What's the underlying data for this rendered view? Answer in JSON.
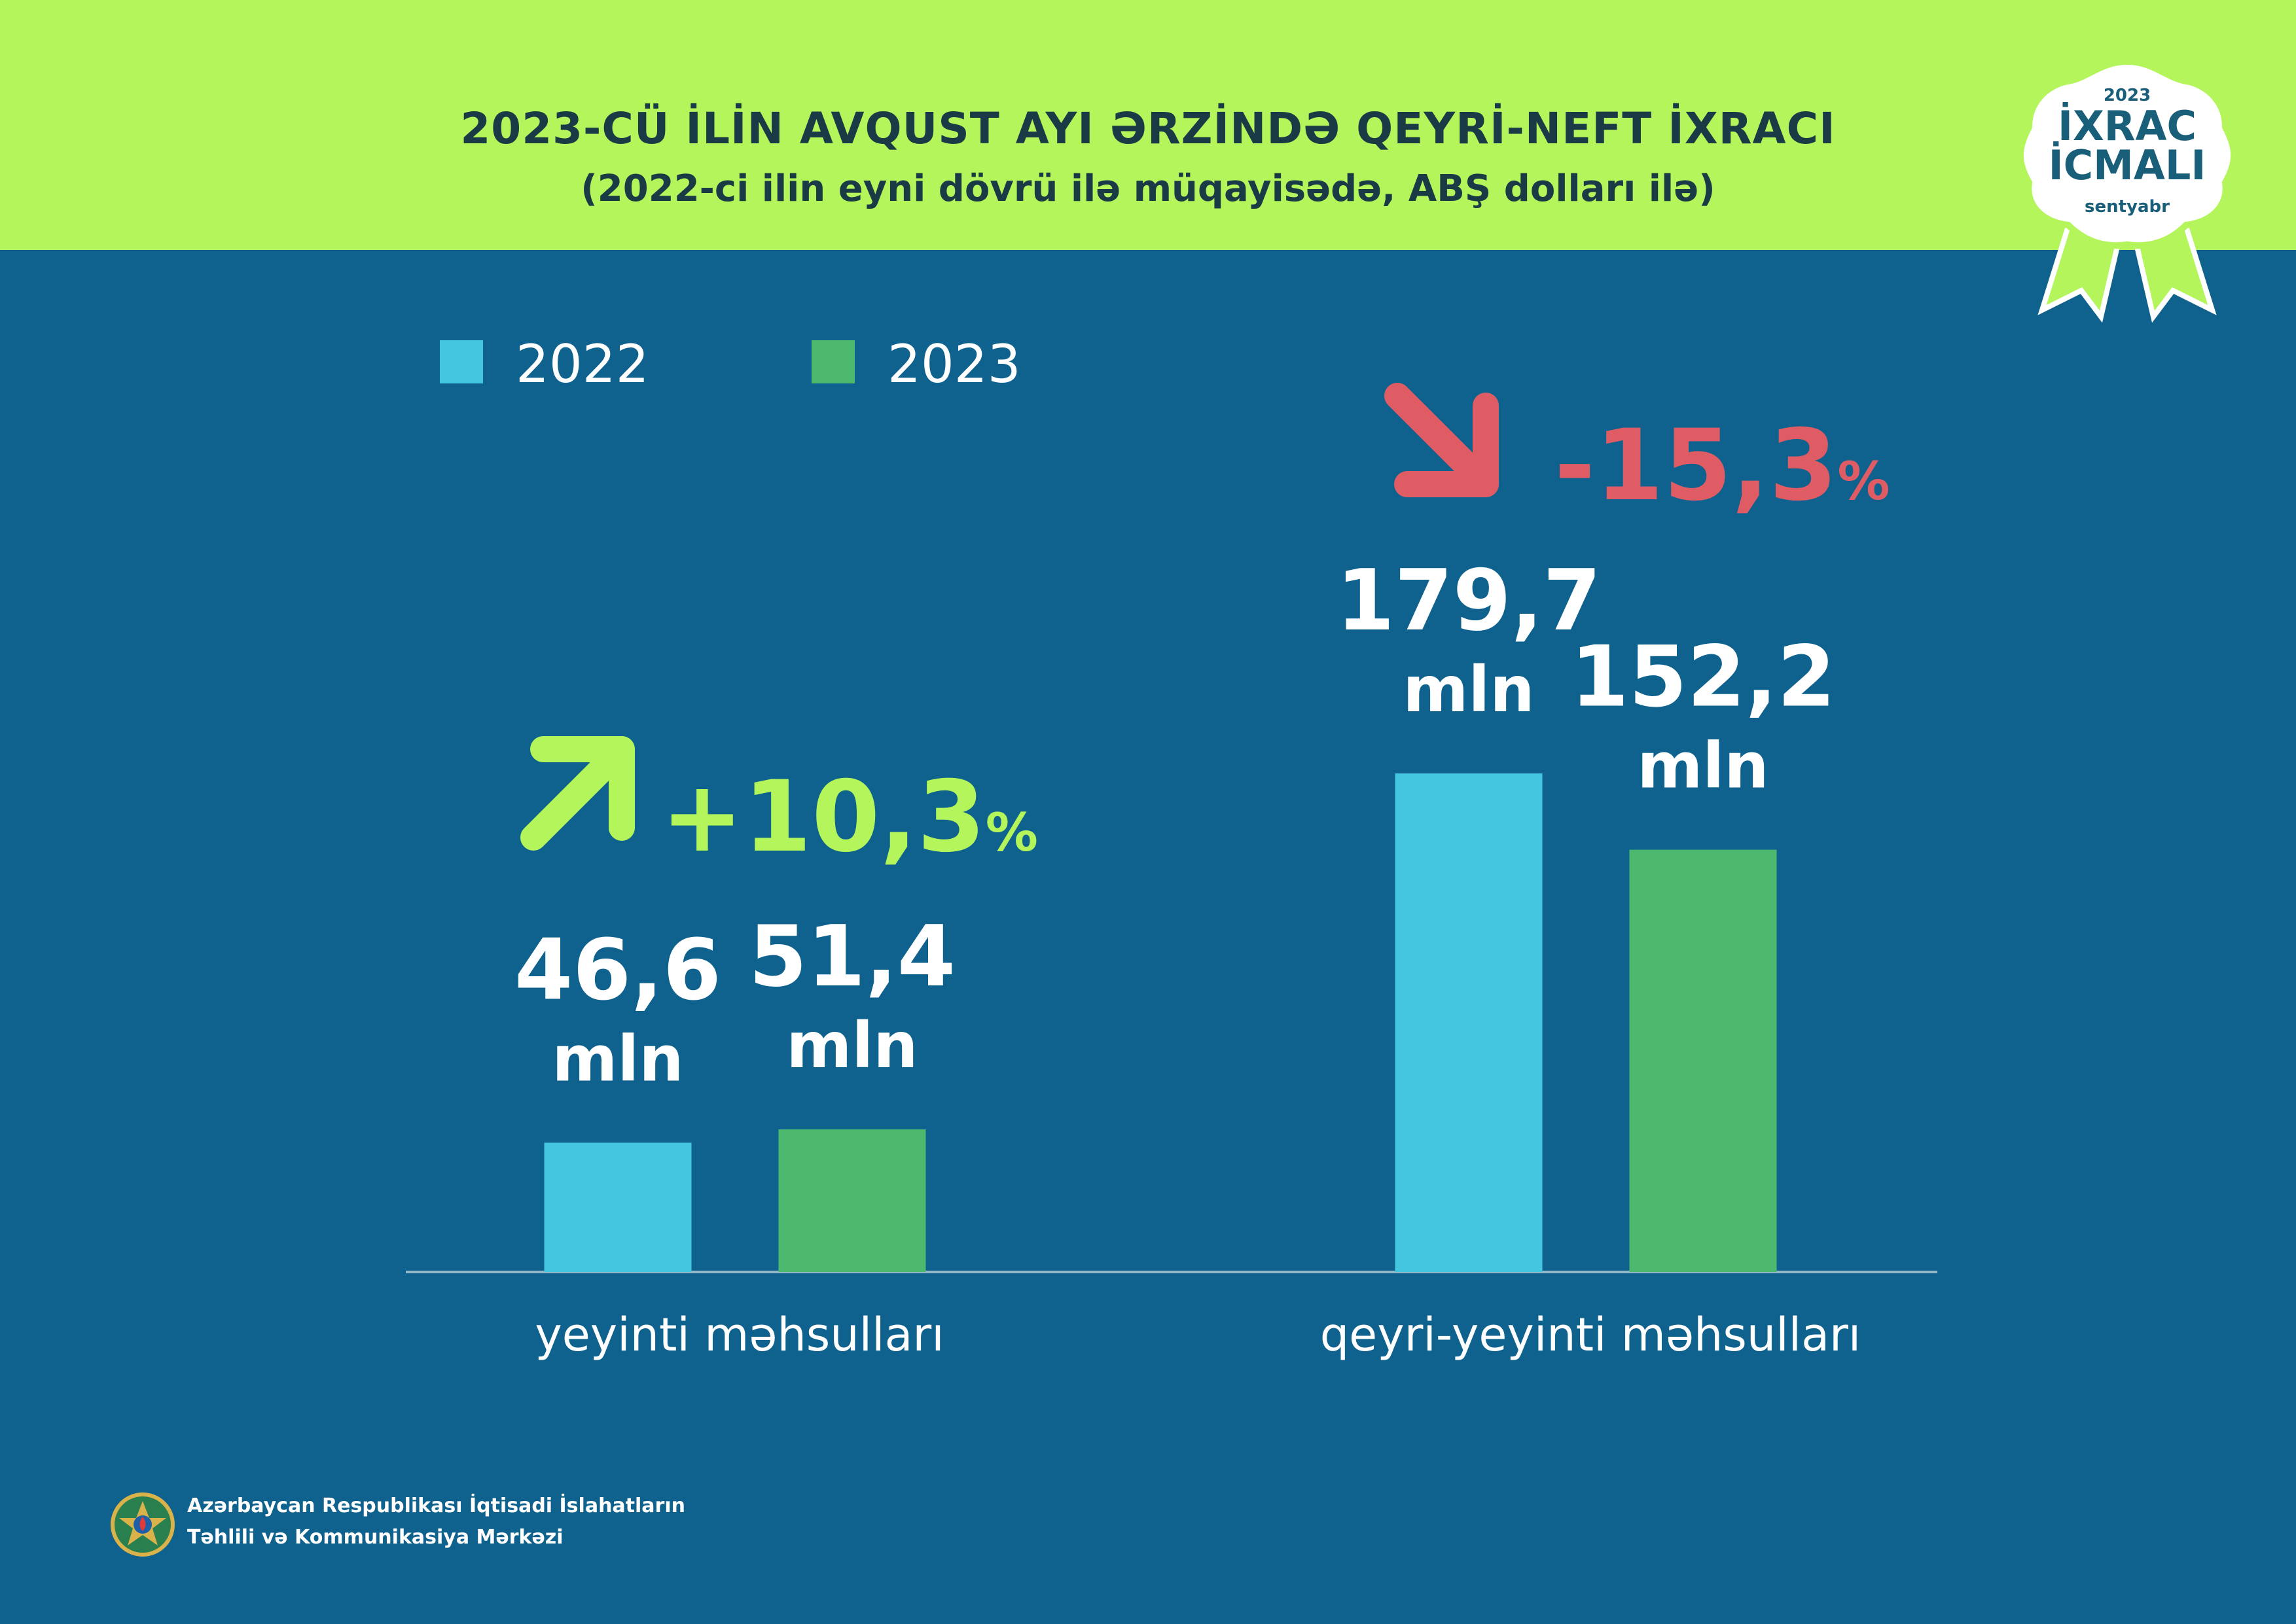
{
  "header": {
    "title": "2023-CÜ İLİN AVQUST AYI ƏRZİNDƏ QEYRİ-NEFT İXRACI",
    "subtitle": "(2022-ci ilin eyni dövrü ilə müqayisədə, ABŞ dolları ilə)"
  },
  "badge": {
    "year": "2023",
    "line1": "İXRAC",
    "line2": "İCMALI",
    "month": "sentyabr"
  },
  "chart_data": {
    "type": "bar",
    "categories": [
      "yeyinti məhsulları",
      "qeyri-yeyinti məhsulları"
    ],
    "series": [
      {
        "name": "2022",
        "values": [
          46.6,
          179.7
        ],
        "labels": [
          "46,6",
          "179,7"
        ],
        "color": "#45c6e0"
      },
      {
        "name": "2023",
        "values": [
          51.4,
          152.2
        ],
        "labels": [
          "51,4",
          "152,2"
        ],
        "color": "#4db96e"
      }
    ],
    "unit_label": "mln",
    "changes": [
      {
        "category": "yeyinti məhsulları",
        "value": "+10,3",
        "suffix": "%",
        "direction": "up",
        "color": "#b3f55a"
      },
      {
        "category": "qeyri-yeyinti məhsulları",
        "value": "-15,3",
        "suffix": "%",
        "direction": "down",
        "color": "#e05c64"
      }
    ],
    "legend_position": "top-left",
    "grid": false
  },
  "footer": {
    "org_line1": "Azərbaycan Respublikası İqtisadi İslahatların",
    "org_line2": "Təhlili və Kommunikasiya Mərkəzi"
  },
  "colors": {
    "background": "#0f628d",
    "header": "#b3f55a",
    "title_text": "#1a3a45"
  }
}
